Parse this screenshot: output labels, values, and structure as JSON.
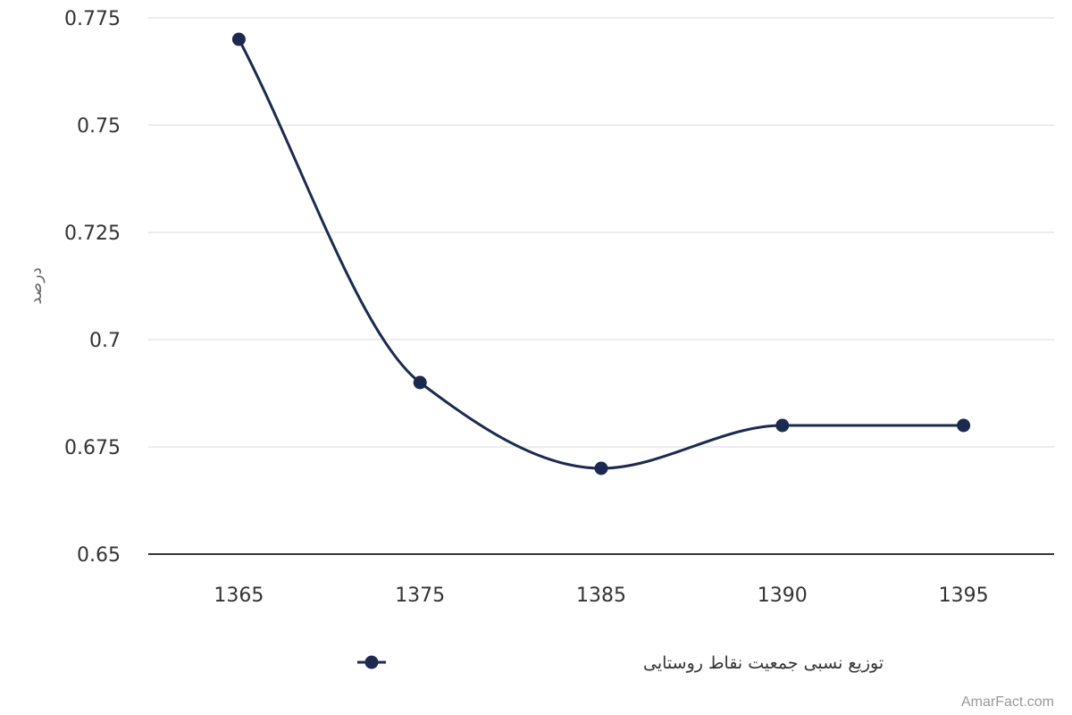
{
  "chart_data": {
    "type": "line",
    "curve": "smooth",
    "categories": [
      "1365",
      "1375",
      "1385",
      "1390",
      "1395"
    ],
    "series": [
      {
        "name": "توزیع نسبی جمعیت نقاط روستایی",
        "values": [
          0.77,
          0.69,
          0.67,
          0.68,
          0.68
        ],
        "color": "#1b2a4e"
      }
    ],
    "ylabel": "درصد",
    "xlabel": "",
    "ylim": [
      0.65,
      0.775
    ],
    "yticks": [
      0.65,
      0.675,
      0.7,
      0.725,
      0.75,
      0.775
    ],
    "ytick_labels": [
      "0.65",
      "0.675",
      "0.7",
      "0.725",
      "0.75",
      "0.775"
    ],
    "grid": true,
    "legend_position": "bottom-center",
    "gridline_color": "#e6e6e6",
    "axis_line_color": "#333333"
  },
  "credit": "AmarFact.com"
}
